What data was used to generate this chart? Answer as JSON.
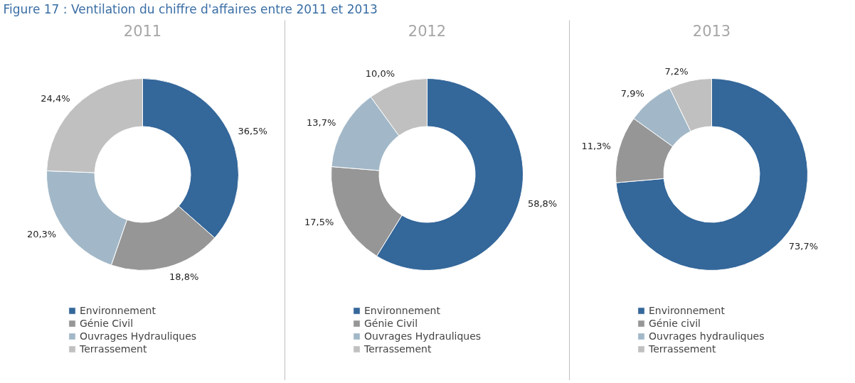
{
  "chart_data": [
    {
      "type": "donut",
      "title": "2011",
      "annotations": [
        "Figure 17 : Ventilation du chiffre d'affaires entre 2011 et 2013"
      ],
      "categories": [
        "Environnement",
        "Génie Civil",
        "Ouvrages Hydrauliques",
        "Terrassement"
      ],
      "values": [
        36.5,
        18.8,
        20.3,
        24.4
      ],
      "value_labels": [
        "36,5%",
        "18,8%",
        "20,3%",
        "24,4%"
      ],
      "colors": [
        "#34679a",
        "#969696",
        "#a2b8c8",
        "#c0c0c0"
      ],
      "legend": "bottom"
    },
    {
      "type": "donut",
      "title": "2012",
      "categories": [
        "Environnement",
        "Génie Civil",
        "Ouvrages Hydrauliques",
        "Terrassement"
      ],
      "values": [
        58.8,
        17.5,
        13.7,
        10.0
      ],
      "value_labels": [
        "58,8%",
        "17,5%",
        "13,7%",
        "10,0%"
      ],
      "colors": [
        "#34679a",
        "#969696",
        "#a2b8c8",
        "#c0c0c0"
      ],
      "legend": "bottom"
    },
    {
      "type": "donut",
      "title": "2013",
      "categories": [
        "Environnement",
        "Génie civil",
        "Ouvrages hydrauliques",
        "Terrassement"
      ],
      "values": [
        73.7,
        11.3,
        7.9,
        7.2
      ],
      "value_labels": [
        "73,7%",
        "11,3%",
        "7,9%",
        "7,2%"
      ],
      "colors": [
        "#34679a",
        "#969696",
        "#a2b8c8",
        "#c0c0c0"
      ],
      "legend": "bottom"
    }
  ]
}
